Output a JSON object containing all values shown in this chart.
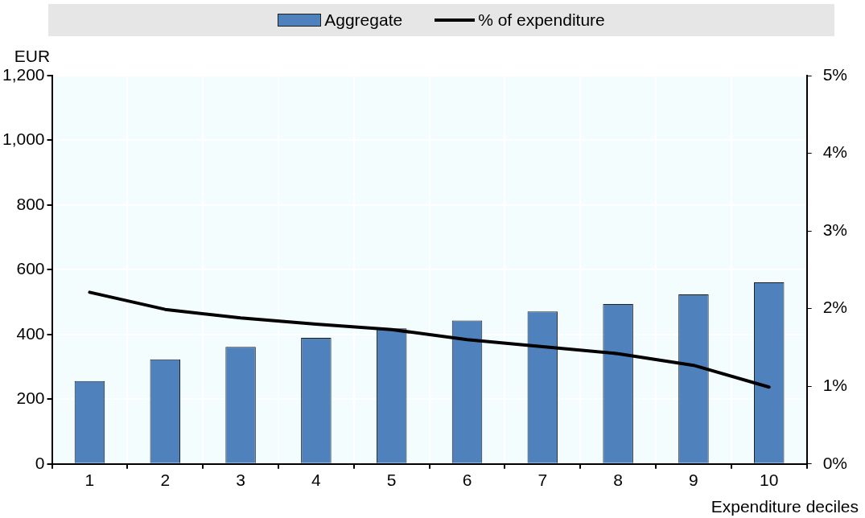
{
  "chart_data": {
    "type": "bar",
    "xlabel": "Expenditure deciles",
    "ylabel": "EUR",
    "categories": [
      "1",
      "2",
      "3",
      "4",
      "5",
      "6",
      "7",
      "8",
      "9",
      "10"
    ],
    "series": [
      {
        "name": "Aggregate",
        "color": "#4f81bd",
        "values": [
          256,
          323,
          362,
          390,
          419,
          443,
          471,
          494,
          524,
          561
        ]
      },
      {
        "name": "% of expenditure",
        "type": "line",
        "axis": "y2",
        "color": "#000000",
        "marker": "none",
        "values": [
          2.21,
          1.99,
          1.88,
          1.8,
          1.73,
          1.6,
          1.51,
          1.42,
          1.27,
          0.99
        ]
      }
    ],
    "ylim": [
      0,
      1200
    ],
    "yticks": [
      0,
      {
        "value": 200,
        "label": "200"
      },
      {
        "value": 400,
        "label": "400"
      },
      {
        "value": 600,
        "label": "600"
      },
      {
        "value": 800,
        "label": "800"
      },
      {
        "value": 1000,
        "label": "1,000"
      },
      {
        "value": 1200,
        "label": "1,200"
      }
    ],
    "y2lim": [
      0,
      5
    ],
    "y2ticks": [
      {
        "value": 0,
        "label": "0%"
      },
      {
        "value": 1,
        "label": "1%"
      },
      {
        "value": 2,
        "label": "2%"
      },
      {
        "value": 3,
        "label": "3%"
      },
      {
        "value": 4,
        "label": "4%"
      },
      {
        "value": 5,
        "label": "5%"
      }
    ],
    "grid": true,
    "legend": "top"
  }
}
